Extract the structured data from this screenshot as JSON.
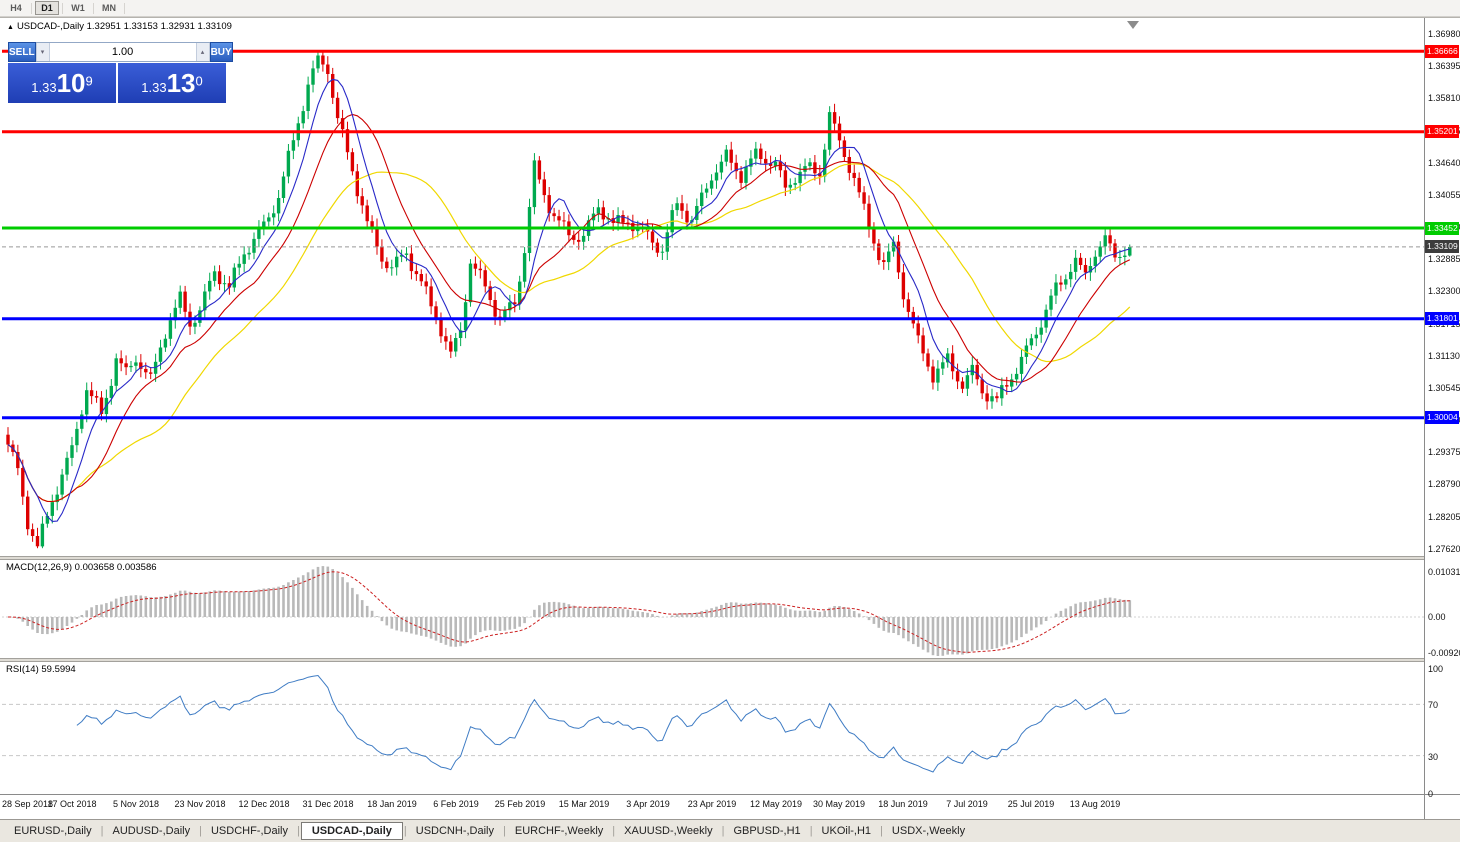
{
  "toolbar": {
    "timeframes": [
      {
        "label": "H4",
        "active": false
      },
      {
        "label": "D1",
        "active": true
      },
      {
        "label": "W1",
        "active": false
      },
      {
        "label": "MN",
        "active": false
      }
    ]
  },
  "chart_header": {
    "symbol_line": "USDCAD-,Daily 1.32951 1.33153 1.32931 1.33109"
  },
  "trade_panel": {
    "sell_label": "SELL",
    "buy_label": "BUY",
    "volume": "1.00",
    "sell_price": {
      "prefix": "1.33",
      "big": "10",
      "sup": "9"
    },
    "buy_price": {
      "prefix": "1.33",
      "big": "13",
      "sup": "0"
    }
  },
  "chart_data": {
    "type": "candlestick",
    "symbol": "USDCAD-",
    "timeframe": "Daily",
    "ohlc": {
      "open": 1.32951,
      "high": 1.33153,
      "low": 1.32931,
      "close": 1.33109
    },
    "y_axis": {
      "ticks": [
        "1.36980",
        "1.36395",
        "1.35810",
        "1.35225",
        "1.34640",
        "1.34055",
        "1.33470",
        "1.32885",
        "1.32300",
        "1.31715",
        "1.31130",
        "1.30545",
        "1.29960",
        "1.29375",
        "1.28790",
        "1.28205",
        "1.27620"
      ],
      "top_price": 1.3698,
      "step": 0.00585
    },
    "x_axis": {
      "labels": [
        "28 Sep 2018",
        "17 Oct 2018",
        "5 Nov 2018",
        "23 Nov 2018",
        "12 Dec 2018",
        "31 Dec 2018",
        "18 Jan 2019",
        "6 Feb 2019",
        "25 Feb 2019",
        "15 Mar 2019",
        "3 Apr 2019",
        "23 Apr 2019",
        "12 May 2019",
        "30 May 2019",
        "18 Jun 2019",
        "7 Jul 2019",
        "25 Jul 2019",
        "13 Aug 2019"
      ],
      "candles_per_label": 13
    },
    "levels": [
      {
        "price": 1.36666,
        "label": "1.36666",
        "color": "#ff0000"
      },
      {
        "price": 1.35201,
        "label": "1.35201",
        "color": "#ff0000"
      },
      {
        "price": 1.33452,
        "label": "1.33452",
        "color": "#00cc00"
      },
      {
        "price": 1.31801,
        "label": "1.31801",
        "color": "#0000ff"
      },
      {
        "price": 1.30004,
        "label": "1.30004",
        "color": "#0000ff"
      }
    ],
    "current_price": {
      "price": 1.33109,
      "label": "1.33109",
      "line_color": "#999999",
      "badge_color": "#3c3c3c"
    },
    "candles_count": 229,
    "price_path": [
      [
        0,
        1.2945
      ],
      [
        2,
        1.29
      ],
      [
        4,
        1.2815
      ],
      [
        6,
        1.2772
      ],
      [
        9,
        1.2855
      ],
      [
        13,
        1.2935
      ],
      [
        16,
        1.305
      ],
      [
        19,
        1.3008
      ],
      [
        22,
        1.3115
      ],
      [
        24,
        1.3085
      ],
      [
        26,
        1.311
      ],
      [
        29,
        1.306
      ],
      [
        32,
        1.3155
      ],
      [
        35,
        1.322
      ],
      [
        37,
        1.318
      ],
      [
        39,
        1.32
      ],
      [
        42,
        1.3265
      ],
      [
        45,
        1.3228
      ],
      [
        48,
        1.33
      ],
      [
        52,
        1.3355
      ],
      [
        55,
        1.3408
      ],
      [
        58,
        1.35
      ],
      [
        61,
        1.3598
      ],
      [
        63,
        1.365
      ],
      [
        65,
        1.3638
      ],
      [
        67,
        1.355
      ],
      [
        70,
        1.3455
      ],
      [
        73,
        1.335
      ],
      [
        76,
        1.3285
      ],
      [
        78,
        1.3268
      ],
      [
        81,
        1.3305
      ],
      [
        84,
        1.3252
      ],
      [
        87,
        1.3185
      ],
      [
        90,
        1.3105
      ],
      [
        92,
        1.3155
      ],
      [
        94,
        1.3282
      ],
      [
        97,
        1.3245
      ],
      [
        100,
        1.3185
      ],
      [
        103,
        1.3208
      ],
      [
        105,
        1.33
      ],
      [
        107,
        1.3448
      ],
      [
        109,
        1.3405
      ],
      [
        111,
        1.3368
      ],
      [
        114,
        1.3342
      ],
      [
        117,
        1.333
      ],
      [
        120,
        1.338
      ],
      [
        123,
        1.3345
      ],
      [
        126,
        1.3362
      ],
      [
        130,
        1.3338
      ],
      [
        133,
        1.3305
      ],
      [
        136,
        1.3385
      ],
      [
        139,
        1.3352
      ],
      [
        143,
        1.3448
      ],
      [
        146,
        1.348
      ],
      [
        149,
        1.344
      ],
      [
        152,
        1.347
      ],
      [
        156,
        1.3462
      ],
      [
        158,
        1.342
      ],
      [
        160,
        1.3448
      ],
      [
        162,
        1.3458
      ],
      [
        165,
        1.3442
      ],
      [
        167,
        1.3545
      ],
      [
        169,
        1.3492
      ],
      [
        172,
        1.344
      ],
      [
        175,
        1.3352
      ],
      [
        178,
        1.3282
      ],
      [
        180,
        1.3308
      ],
      [
        182,
        1.322
      ],
      [
        185,
        1.3132
      ],
      [
        188,
        1.3082
      ],
      [
        191,
        1.3112
      ],
      [
        194,
        1.3062
      ],
      [
        196,
        1.308
      ],
      [
        198,
        1.3042
      ],
      [
        201,
        1.3028
      ],
      [
        204,
        1.3082
      ],
      [
        207,
        1.3128
      ],
      [
        209,
        1.3158
      ],
      [
        212,
        1.3212
      ],
      [
        215,
        1.3252
      ],
      [
        217,
        1.3288
      ],
      [
        219,
        1.3262
      ],
      [
        221,
        1.3302
      ],
      [
        223,
        1.3332
      ],
      [
        225,
        1.3292
      ],
      [
        227,
        1.32951
      ],
      [
        228,
        1.33109
      ]
    ],
    "colors": {
      "bull": "#00a94f",
      "bear": "#dd0000",
      "ma_fast": "#2929c8",
      "ma_medium": "#cc0000",
      "ma_slow": "#f0d800",
      "macd_hist": "#b9b9b9",
      "macd_signal": "#cc2222",
      "rsi_line": "#3f7cc4"
    },
    "ma_periods": {
      "fast": 7,
      "medium": 15,
      "slow": 30
    },
    "indicators": {
      "macd": {
        "label": "MACD(12,26,9)",
        "values": "0.003658 0.003586",
        "axis_ticks": [
          "0.010311",
          "0.00",
          "-0.00920"
        ],
        "fast": 12,
        "slow": 26,
        "signal": 9
      },
      "rsi": {
        "label": "RSI(14)",
        "value": "59.5994",
        "axis_ticks": [
          "100",
          "70",
          "30",
          "0"
        ],
        "levels": [
          70,
          30
        ],
        "period": 14
      }
    }
  },
  "tabs": {
    "items": [
      {
        "label": "EURUSD-,Daily",
        "active": false
      },
      {
        "label": "AUDUSD-,Daily",
        "active": false
      },
      {
        "label": "USDCHF-,Daily",
        "active": false
      },
      {
        "label": "USDCAD-,Daily",
        "active": true
      },
      {
        "label": "USDCNH-,Daily",
        "active": false
      },
      {
        "label": "EURCHF-,Weekly",
        "active": false
      },
      {
        "label": "XAUUSD-,Weekly",
        "active": false
      },
      {
        "label": "GBPUSD-,H1",
        "active": false
      },
      {
        "label": "UKOil-,H1",
        "active": false
      },
      {
        "label": "USDX-,Weekly",
        "active": false
      }
    ]
  }
}
